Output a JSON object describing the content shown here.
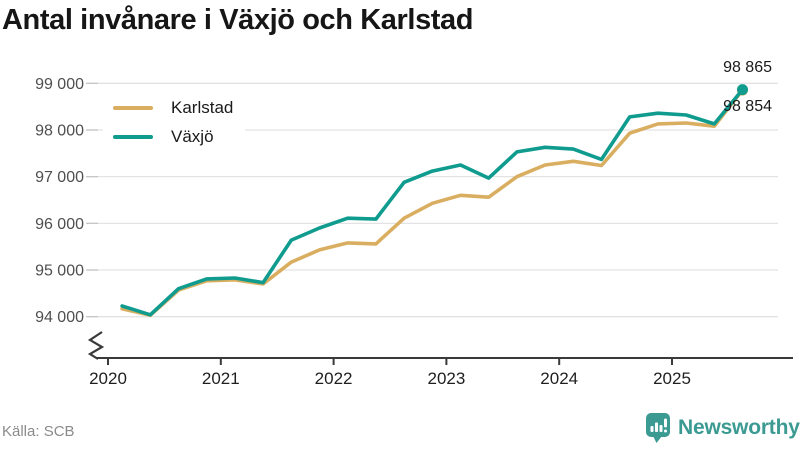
{
  "title": "Antal invånare i Växjö och Karlstad",
  "source": "Källa: SCB",
  "branding": {
    "name": "Newsworthy",
    "color": "#3B9A91"
  },
  "end_labels": {
    "vaxjo": "98 865",
    "karlstad": "98 854"
  },
  "colors": {
    "karlstad_line": "#D9AE60",
    "vaxjo_line": "#109B8F",
    "gridline": "#E3E3E3",
    "axis_line": "#3A3A3A",
    "y_label": "#4F4F4F",
    "x_label": "#1F1F1F"
  },
  "chart_data": {
    "type": "line",
    "frequency": "quarterly",
    "title": "Antal invånare i Växjö och Karlstad",
    "xlabel": "",
    "ylabel": "",
    "ylim": [
      94000,
      99000
    ],
    "y_axis_break": true,
    "grid": true,
    "legend_position": "top-left",
    "x_ticks": [
      "2020",
      "2021",
      "2022",
      "2023",
      "2024",
      "2025"
    ],
    "y_ticks": [
      {
        "label": "99 000",
        "value": 99000
      },
      {
        "label": "98 000",
        "value": 98000
      },
      {
        "label": "97 000",
        "value": 97000
      },
      {
        "label": "96 000",
        "value": 96000
      },
      {
        "label": "95 000",
        "value": 95000
      },
      {
        "label": "94 000",
        "value": 94000
      }
    ],
    "x": [
      "2020 Q1",
      "2020 Q2",
      "2020 Q3",
      "2020 Q4",
      "2021 Q1",
      "2021 Q2",
      "2021 Q3",
      "2021 Q4",
      "2022 Q1",
      "2022 Q2",
      "2022 Q3",
      "2022 Q4",
      "2023 Q1",
      "2023 Q2",
      "2023 Q3",
      "2023 Q4",
      "2024 Q1",
      "2024 Q2",
      "2024 Q3",
      "2024 Q4",
      "2025 Q1",
      "2025 Q2",
      "2025 Q3"
    ],
    "series": [
      {
        "name": "Karlstad",
        "color": "#D9AE60",
        "last_value_label": "98 854",
        "values": [
          94170,
          94030,
          94570,
          94770,
          94790,
          94700,
          95170,
          95430,
          95580,
          95560,
          96110,
          96430,
          96600,
          96560,
          97000,
          97250,
          97330,
          97240,
          97930,
          98130,
          98150,
          98080,
          98854
        ]
      },
      {
        "name": "Växjö",
        "color": "#109B8F",
        "last_value_label": "98 865",
        "values": [
          94230,
          94040,
          94600,
          94810,
          94830,
          94730,
          95640,
          95900,
          96110,
          96090,
          96880,
          97120,
          97250,
          96970,
          97530,
          97630,
          97590,
          97370,
          98280,
          98360,
          98320,
          98130,
          98865
        ]
      }
    ]
  }
}
